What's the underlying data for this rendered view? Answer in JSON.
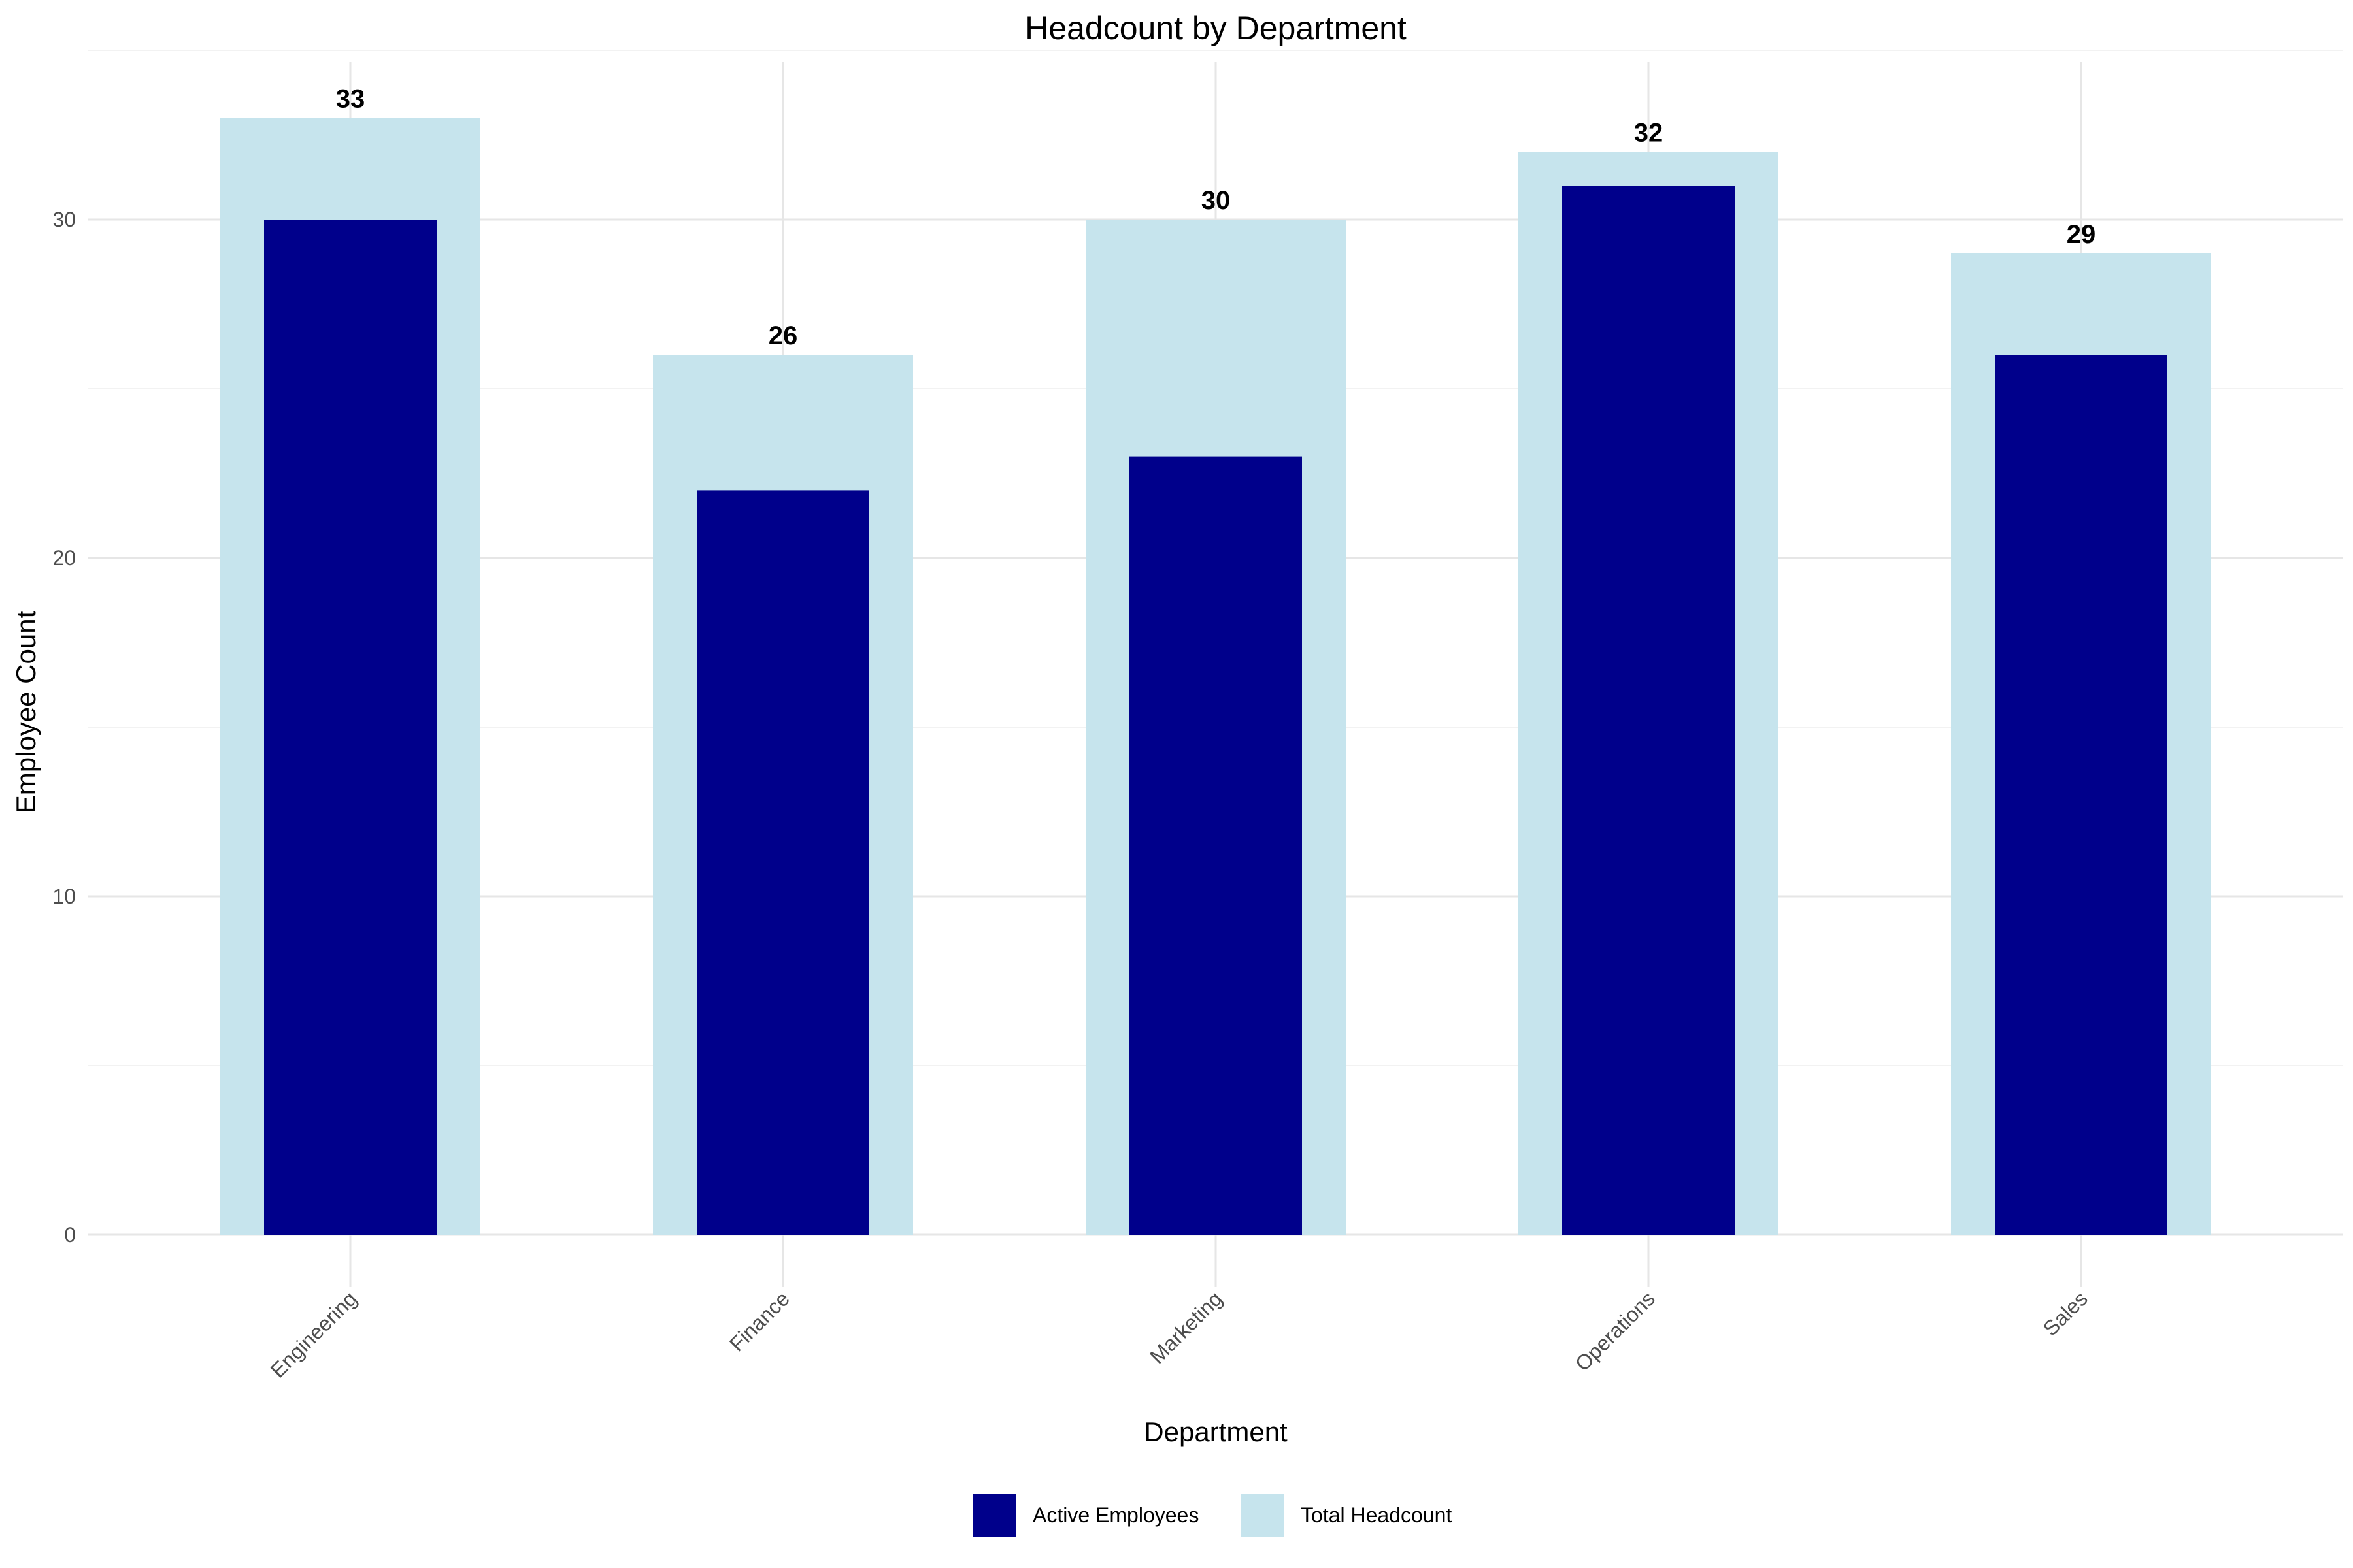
{
  "chart_data": {
    "type": "bar",
    "title": "Headcount by Department",
    "xlabel": "Department",
    "ylabel": "Employee Count",
    "categories": [
      "Engineering",
      "Finance",
      "Marketing",
      "Operations",
      "Sales"
    ],
    "series": [
      {
        "name": "Total Headcount",
        "values": [
          33,
          26,
          30,
          32,
          29
        ],
        "color": "#c6e4ed"
      },
      {
        "name": "Active Employees",
        "values": [
          30,
          22,
          23,
          31,
          26
        ],
        "color": "#00008b"
      }
    ],
    "data_labels": [
      "33",
      "26",
      "30",
      "32",
      "29"
    ],
    "ylim": [
      0,
      35
    ],
    "yticks": [
      0,
      10,
      20,
      30
    ],
    "grid": true,
    "legend_position": "bottom",
    "legend_entries": [
      "Active Employees",
      "Total Headcount"
    ]
  }
}
